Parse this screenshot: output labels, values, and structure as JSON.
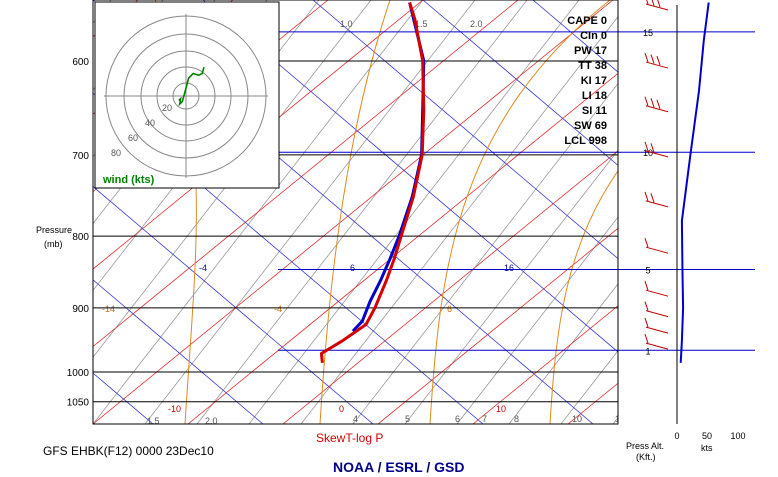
{
  "chart_data": {
    "type": "line",
    "title": "SkewT-log P",
    "model_label": "GFS EHBK(F12) 0000 23Dec10",
    "agency": "NOAA / ESRL / GSD",
    "ylabel": "Pressure (mb)",
    "pressure_ticks": [
      600,
      700,
      800,
      900,
      1000,
      1050
    ],
    "pressure_ticks_text": [
      "600",
      "700",
      "800",
      "900",
      "1000",
      "1050"
    ],
    "axis_pressure_label_1": "Pressure",
    "axis_pressure_label_2": "(mb)",
    "ylim": [
      545,
      1080
    ],
    "altitude_kft": [
      {
        "label": "1",
        "pressure": 965
      },
      {
        "label": "5",
        "pressure": 845
      },
      {
        "label": "10",
        "pressure": 697
      },
      {
        "label": "15",
        "pressure": 572
      }
    ],
    "altitude_axis_label_1": "Press Alt.",
    "altitude_axis_label_2": "(Kft.)",
    "wind_axis_ticks": [
      "0",
      "50",
      "100"
    ],
    "wind_axis_unit": "kts",
    "mixing_ratio_labels": [
      "1.0",
      "1.5",
      "2.0",
      "1.5",
      "2.0",
      "4",
      "5",
      "6",
      "7",
      "8",
      "10",
      "1"
    ],
    "isotherm_labels": [
      "-4",
      "6",
      "16"
    ],
    "dry_adiabat_labels": [
      "-10",
      "0",
      "10"
    ],
    "moist_adiabat_labels": [
      "-14",
      "-4",
      "6"
    ],
    "series": [
      {
        "name": "Temperature",
        "color": "#d40000",
        "points": [
          [
            545,
            0.603
          ],
          [
            560,
            0.613
          ],
          [
            600,
            0.628
          ],
          [
            650,
            0.63
          ],
          [
            700,
            0.627
          ],
          [
            750,
            0.61
          ],
          [
            800,
            0.587
          ],
          [
            830,
            0.574
          ],
          [
            860,
            0.559
          ],
          [
            900,
            0.537
          ],
          [
            925,
            0.52
          ],
          [
            950,
            0.475
          ],
          [
            970,
            0.435
          ],
          [
            985,
            0.437
          ]
        ]
      },
      {
        "name": "Dewpoint",
        "color": "#0000c8",
        "points": [
          [
            545,
            0.603
          ],
          [
            600,
            0.63
          ],
          [
            650,
            0.628
          ],
          [
            700,
            0.626
          ],
          [
            750,
            0.608
          ],
          [
            800,
            0.583
          ],
          [
            830,
            0.566
          ],
          [
            860,
            0.548
          ],
          [
            890,
            0.528
          ],
          [
            920,
            0.513
          ],
          [
            935,
            0.495
          ]
        ]
      },
      {
        "name": "Wind speed",
        "color": "#0000c8",
        "points": [
          [
            545,
            0.52
          ],
          [
            580,
            0.44
          ],
          [
            630,
            0.36
          ],
          [
            700,
            0.22
          ],
          [
            780,
            0.08
          ],
          [
            850,
            0.09
          ],
          [
            900,
            0.1
          ],
          [
            950,
            0.08
          ],
          [
            985,
            0.06
          ]
        ]
      }
    ],
    "indices": [
      {
        "label": "CAPE",
        "value": "0"
      },
      {
        "label": "CIn",
        "value": "0"
      },
      {
        "label": "PW",
        "value": "17"
      },
      {
        "label": "TT",
        "value": "38"
      },
      {
        "label": "KI",
        "value": "17"
      },
      {
        "label": "LI",
        "value": "18"
      },
      {
        "label": "SI",
        "value": "11"
      },
      {
        "label": "SW",
        "value": "69"
      },
      {
        "label": "LCL",
        "value": "998"
      }
    ],
    "hodograph": {
      "label": "wind (kts)",
      "ring_labels": [
        "20",
        "40",
        "60",
        "80"
      ],
      "path": [
        [
          -8,
          -5
        ],
        [
          -6,
          -3
        ],
        [
          -7,
          -9
        ],
        [
          -4,
          -6
        ],
        [
          3,
          20
        ],
        [
          8,
          25
        ],
        [
          14,
          23
        ],
        [
          18,
          25
        ],
        [
          20,
          32
        ]
      ]
    },
    "wind_barbs": [
      {
        "pressure": 550,
        "flags": 3
      },
      {
        "pressure": 605,
        "flags": 3
      },
      {
        "pressure": 650,
        "flags": 3
      },
      {
        "pressure": 700,
        "flags": 2
      },
      {
        "pressure": 760,
        "flags": 2
      },
      {
        "pressure": 820,
        "flags": 1
      },
      {
        "pressure": 880,
        "flags": 1
      },
      {
        "pressure": 910,
        "flags": 1
      },
      {
        "pressure": 935,
        "flags": 1
      },
      {
        "pressure": 960,
        "flags": 1
      }
    ]
  }
}
